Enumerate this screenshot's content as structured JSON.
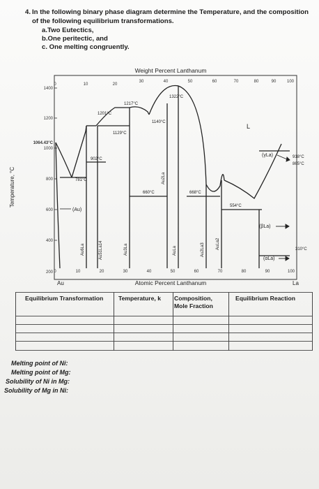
{
  "question": {
    "number": "4.",
    "stem": "In the following binary phase diagram determine the Temperature, and the composition of the following equilibrium transformations.",
    "items": [
      "a.Two Eutectics,",
      "b.One peritectic, and",
      "c. One melting congruently."
    ]
  },
  "diagram": {
    "top_axis_title": "Weight Percent Lanthanum",
    "bottom_axis_title": "Atomic Percent Lanthanum",
    "y_axis_title": "Temperature, °C",
    "top_ticks": [
      "0",
      "10",
      "20",
      "30",
      "40",
      "50",
      "60",
      "70",
      "80",
      "90",
      "100"
    ],
    "bottom_ticks": [
      "0",
      "10",
      "20",
      "30",
      "40",
      "50",
      "60",
      "70",
      "80",
      "90",
      "100"
    ],
    "y_ticks": [
      "1400",
      "1200",
      "1064.43°C",
      "1000",
      "800",
      "600",
      "400",
      "200"
    ],
    "left_element": "Au",
    "right_element": "La",
    "temperatures": {
      "t1322": "1322°C",
      "t1217": "1217°C",
      "t1201": "1201°C",
      "t1129": "1129°C",
      "t1140": "1140°C",
      "t902": "902°C",
      "t781": "781°C",
      "t660": "660°C",
      "t668": "668°C",
      "t554": "554°C",
      "t918": "918°C",
      "t865": "865°C",
      "t310": "310°C"
    },
    "phases": {
      "liquid": "L",
      "au": "(Au)",
      "au6la": "Au6La",
      "au51la14": "Au51La14",
      "au3la": "Au3La",
      "au2la": "Au2La",
      "aula": "AuLa",
      "au2la3": "Au2La3",
      "aula2": "AuLa2",
      "gamma_la": "(γLa)",
      "beta_la": "(βLa)",
      "alpha_la": "(αLa)"
    }
  },
  "table": {
    "headers": [
      "Equilibrium Transformation",
      "Temperature, k",
      "Composition, Mole Fraction",
      "Equilibrium Reaction"
    ]
  },
  "notes": [
    "Melting point of Ni:",
    "Melting point of Mg:",
    "Solubility of Ni in Mg:",
    "Solubility of Mg in Ni:"
  ]
}
